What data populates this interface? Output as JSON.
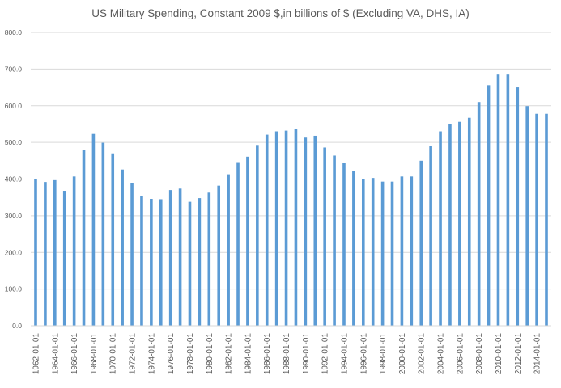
{
  "chart_data": {
    "type": "bar",
    "title": "US Military Spending, Constant 2009 $,in billions of $ (Excluding VA, DHS, IA)",
    "xlabel": "",
    "ylabel": "",
    "ylim": [
      0,
      800
    ],
    "yticks": [
      0,
      100,
      200,
      300,
      400,
      500,
      600,
      700,
      800
    ],
    "ytick_labels": [
      "0.0",
      "100.0",
      "200.0",
      "300.0",
      "400.0",
      "500.0",
      "600.0",
      "700.0",
      "800.0"
    ],
    "grid": true,
    "legend": "none",
    "bar_color": "#5B9BD5",
    "categories": [
      "1962-01-01",
      "1963-01-01",
      "1964-01-01",
      "1965-01-01",
      "1966-01-01",
      "1967-01-01",
      "1968-01-01",
      "1969-01-01",
      "1970-01-01",
      "1971-01-01",
      "1972-01-01",
      "1973-01-01",
      "1974-01-01",
      "1975-01-01",
      "1976-01-01",
      "1977-01-01",
      "1978-01-01",
      "1979-01-01",
      "1980-01-01",
      "1981-01-01",
      "1982-01-01",
      "1983-01-01",
      "1984-01-01",
      "1985-01-01",
      "1986-01-01",
      "1987-01-01",
      "1988-01-01",
      "1989-01-01",
      "1990-01-01",
      "1991-01-01",
      "1992-01-01",
      "1993-01-01",
      "1994-01-01",
      "1995-01-01",
      "1996-01-01",
      "1997-01-01",
      "1998-01-01",
      "1999-01-01",
      "2000-01-01",
      "2001-01-01",
      "2002-01-01",
      "2003-01-01",
      "2004-01-01",
      "2005-01-01",
      "2006-01-01",
      "2007-01-01",
      "2008-01-01",
      "2009-01-01",
      "2010-01-01",
      "2011-01-01",
      "2012-01-01",
      "2013-01-01",
      "2014-01-01",
      "2015-01-01"
    ],
    "shown_category_labels": [
      "1962-01-01",
      "1964-01-01",
      "1966-01-01",
      "1968-01-01",
      "1970-01-01",
      "1972-01-01",
      "1974-01-01",
      "1976-01-01",
      "1978-01-01",
      "1980-01-01",
      "1982-01-01",
      "1984-01-01",
      "1986-01-01",
      "1988-01-01",
      "1990-01-01",
      "1992-01-01",
      "1994-01-01",
      "1996-01-01",
      "1998-01-01",
      "2000-01-01",
      "2002-01-01",
      "2004-01-01",
      "2006-01-01",
      "2008-01-01",
      "2010-01-01",
      "2012-01-01",
      "2014-01-01"
    ],
    "values": [
      400,
      392,
      397,
      368,
      407,
      479,
      523,
      499,
      470,
      426,
      390,
      353,
      346,
      345,
      370,
      374,
      338,
      348,
      363,
      382,
      413,
      444,
      461,
      493,
      521,
      530,
      532,
      537,
      513,
      518,
      486,
      464,
      443,
      421,
      400,
      403,
      393,
      393,
      407,
      407,
      450,
      491,
      530,
      550,
      556,
      567,
      610,
      656,
      685,
      685,
      650,
      599,
      578,
      578
    ]
  }
}
